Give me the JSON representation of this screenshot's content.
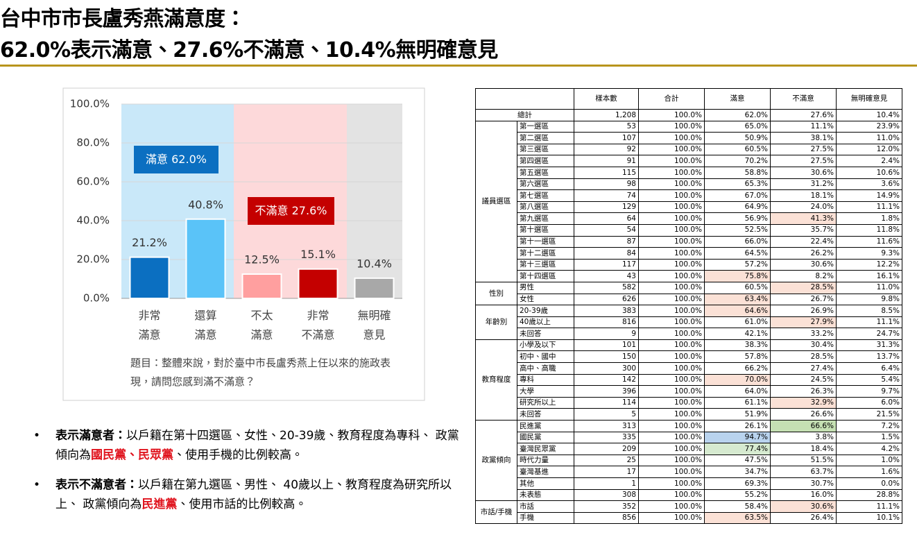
{
  "header": {
    "title": [
      "台中市市長盧秀燕滿意度：",
      "62.0%表示滿意、27.6%不滿意、10.4%無明確意見"
    ]
  },
  "chart_data": {
    "type": "bar",
    "categories": [
      "非常\n滿意",
      "還算\n滿意",
      "不太\n滿意",
      "非常\n不滿意",
      "無明確\n意見"
    ],
    "values": [
      21.2,
      40.8,
      12.5,
      15.1,
      10.4
    ],
    "value_labels": [
      "21.2%",
      "40.8%",
      "12.5%",
      "15.1%",
      "10.4%"
    ],
    "colors": [
      "#0b6fc1",
      "#5ac3f8",
      "#ff9f9f",
      "#c40000",
      "#a8a8a8"
    ],
    "ylim": [
      0,
      100
    ],
    "yticks": [
      {
        "value": 0,
        "label": "0.0%"
      },
      {
        "value": 20,
        "label": "20.0%"
      },
      {
        "value": 40,
        "label": "40.0%"
      },
      {
        "value": 60,
        "label": "60.0%"
      },
      {
        "value": 80,
        "label": "80.0%"
      },
      {
        "value": 100,
        "label": "100.0%"
      }
    ],
    "grid": true,
    "annotations": [
      "滿意 62.0%",
      "不滿意 27.6%"
    ],
    "note": "題目：整體來說，對於臺中市長盧秀燕上任以來的施政表現，請問您感到滿不滿意？"
  },
  "bullets": [
    [
      "表示滿意者：",
      "以戶籍在第十四選區、女性、20-39歲、教育程度為專科、 政黨傾向為",
      "國民黨、民眾黨",
      "、使用手機的比例較高。"
    ],
    [
      "表示不滿意者：",
      "以戶籍在第九選區、男性、 40歲以上、教育程度為研究所以上、 政黨傾向為",
      "民進黨",
      "、使用市話的比例較高。"
    ]
  ],
  "table": {
    "columns": [
      "樣本數",
      "合計",
      "滿意",
      "不滿意",
      "無明確意見"
    ],
    "total": {
      "label": "總計",
      "cells": [
        "1,208",
        "100.0%",
        "62.0%",
        "27.6%",
        "10.4%"
      ]
    },
    "groups": [
      {
        "name": "議員選區",
        "rows": [
          {
            "label": "第一選區",
            "cells": [
              "53",
              "100.0%",
              "65.0%",
              "11.1%",
              "23.9%"
            ]
          },
          {
            "label": "第二選區",
            "cells": [
              "107",
              "100.0%",
              "50.9%",
              "38.1%",
              "11.0%"
            ]
          },
          {
            "label": "第三選區",
            "cells": [
              "92",
              "100.0%",
              "60.5%",
              "27.5%",
              "12.0%"
            ]
          },
          {
            "label": "第四選區",
            "cells": [
              "91",
              "100.0%",
              "70.2%",
              "27.5%",
              "2.4%"
            ]
          },
          {
            "label": "第五選區",
            "cells": [
              "115",
              "100.0%",
              "58.8%",
              "30.6%",
              "10.6%"
            ]
          },
          {
            "label": "第六選區",
            "cells": [
              "98",
              "100.0%",
              "65.3%",
              "31.2%",
              "3.6%"
            ]
          },
          {
            "label": "第七選區",
            "cells": [
              "74",
              "100.0%",
              "67.0%",
              "18.1%",
              "14.9%"
            ]
          },
          {
            "label": "第八選區",
            "cells": [
              "129",
              "100.0%",
              "64.9%",
              "24.0%",
              "11.1%"
            ]
          },
          {
            "label": "第九選區",
            "cells": [
              "64",
              "100.0%",
              "56.9%",
              "41.3%",
              "1.8%"
            ]
          },
          {
            "label": "第十選區",
            "cells": [
              "54",
              "100.0%",
              "52.5%",
              "35.7%",
              "11.8%"
            ]
          },
          {
            "label": "第十一選區",
            "cells": [
              "87",
              "100.0%",
              "66.0%",
              "22.4%",
              "11.6%"
            ]
          },
          {
            "label": "第十二選區",
            "cells": [
              "84",
              "100.0%",
              "64.5%",
              "26.2%",
              "9.3%"
            ]
          },
          {
            "label": "第十三選區",
            "cells": [
              "117",
              "100.0%",
              "57.2%",
              "30.6%",
              "12.2%"
            ]
          },
          {
            "label": "第十四選區",
            "cells": [
              "43",
              "100.0%",
              "75.8%",
              "8.2%",
              "16.1%"
            ]
          }
        ]
      },
      {
        "name": "性別",
        "rows": [
          {
            "label": "男性",
            "cells": [
              "582",
              "100.0%",
              "60.5%",
              "28.5%",
              "11.0%"
            ]
          },
          {
            "label": "女性",
            "cells": [
              "626",
              "100.0%",
              "63.4%",
              "26.7%",
              "9.8%"
            ]
          }
        ]
      },
      {
        "name": "年齡別",
        "rows": [
          {
            "label": "20-39歲",
            "cells": [
              "383",
              "100.0%",
              "64.6%",
              "26.9%",
              "8.5%"
            ]
          },
          {
            "label": "40歲以上",
            "cells": [
              "816",
              "100.0%",
              "61.0%",
              "27.9%",
              "11.1%"
            ]
          },
          {
            "label": "未回答",
            "cells": [
              "9",
              "100.0%",
              "42.1%",
              "33.2%",
              "24.7%"
            ]
          }
        ]
      },
      {
        "name": "教育程度",
        "rows": [
          {
            "label": "小學及以下",
            "cells": [
              "101",
              "100.0%",
              "38.3%",
              "30.4%",
              "31.3%"
            ]
          },
          {
            "label": "初中、國中",
            "cells": [
              "150",
              "100.0%",
              "57.8%",
              "28.5%",
              "13.7%"
            ]
          },
          {
            "label": "高中、高職",
            "cells": [
              "300",
              "100.0%",
              "66.2%",
              "27.4%",
              "6.4%"
            ]
          },
          {
            "label": "專科",
            "cells": [
              "142",
              "100.0%",
              "70.0%",
              "24.5%",
              "5.4%"
            ]
          },
          {
            "label": "大學",
            "cells": [
              "396",
              "100.0%",
              "64.0%",
              "26.3%",
              "9.7%"
            ]
          },
          {
            "label": "研究所以上",
            "cells": [
              "114",
              "100.0%",
              "61.1%",
              "32.9%",
              "6.0%"
            ]
          },
          {
            "label": "未回答",
            "cells": [
              "5",
              "100.0%",
              "51.9%",
              "26.6%",
              "21.5%"
            ]
          }
        ]
      },
      {
        "name": "政黨傾向",
        "rows": [
          {
            "label": "民進黨",
            "cells": [
              "313",
              "100.0%",
              "26.1%",
              "66.6%",
              "7.2%"
            ]
          },
          {
            "label": "國民黨",
            "cells": [
              "335",
              "100.0%",
              "94.7%",
              "3.8%",
              "1.5%"
            ]
          },
          {
            "label": "臺灣民眾黨",
            "cells": [
              "209",
              "100.0%",
              "77.4%",
              "18.4%",
              "4.2%"
            ]
          },
          {
            "label": "時代力量",
            "cells": [
              "25",
              "100.0%",
              "47.5%",
              "51.5%",
              "1.0%"
            ]
          },
          {
            "label": "臺灣基進",
            "cells": [
              "17",
              "100.0%",
              "34.7%",
              "63.7%",
              "1.6%"
            ]
          },
          {
            "label": "其他",
            "cells": [
              "1",
              "100.0%",
              "69.3%",
              "30.7%",
              "0.0%"
            ]
          },
          {
            "label": "未表態",
            "cells": [
              "308",
              "100.0%",
              "55.2%",
              "16.0%",
              "28.8%"
            ]
          }
        ]
      },
      {
        "name": "市話/手機",
        "rows": [
          {
            "label": "市話",
            "cells": [
              "352",
              "100.0%",
              "58.4%",
              "30.6%",
              "11.1%"
            ]
          },
          {
            "label": "手機",
            "cells": [
              "856",
              "100.0%",
              "63.5%",
              "26.4%",
              "10.1%"
            ]
          }
        ]
      }
    ]
  }
}
